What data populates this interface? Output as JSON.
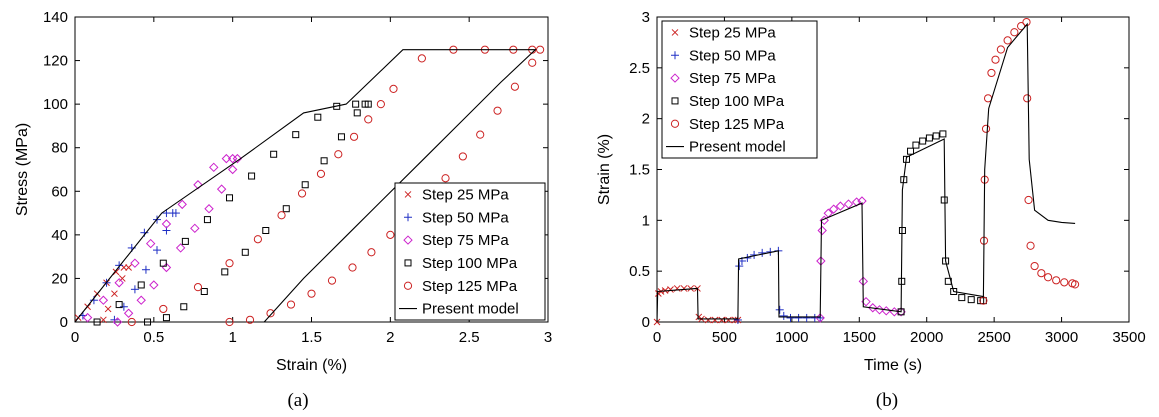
{
  "chart_data": [
    {
      "type": "scatter",
      "panel_label": "(a)",
      "xlabel": "Strain (%)",
      "ylabel": "Stress (MPa)",
      "xlim": [
        0,
        3
      ],
      "ylim": [
        0,
        140
      ],
      "xticks": [
        "0",
        "0.5",
        "1",
        "1.5",
        "2",
        "2.5",
        "3"
      ],
      "yticks": [
        "0",
        "20",
        "40",
        "60",
        "80",
        "100",
        "120",
        "140"
      ],
      "legend_position": "bottom-right",
      "grid": false,
      "series": [
        {
          "name": "Step 25 MPa",
          "marker": "x",
          "color": "#cc2222",
          "x": [
            0.02,
            0.08,
            0.14,
            0.2,
            0.26,
            0.31,
            0.34,
            0.3,
            0.25,
            0.21,
            0.18
          ],
          "y": [
            2,
            7,
            13,
            18,
            23,
            25,
            25,
            20,
            13,
            6,
            1
          ]
        },
        {
          "name": "Step 50 MPa",
          "marker": "+",
          "color": "#1f2fc4",
          "x": [
            0.05,
            0.12,
            0.2,
            0.28,
            0.36,
            0.44,
            0.52,
            0.58,
            0.62,
            0.64,
            0.58,
            0.52,
            0.45,
            0.38,
            0.31,
            0.25
          ],
          "y": [
            3,
            10,
            18,
            26,
            34,
            41,
            47,
            50,
            50,
            50,
            42,
            33,
            24,
            15,
            7,
            1
          ]
        },
        {
          "name": "Step 75 MPa",
          "marker": "diamond",
          "color": "#cc22cc",
          "x": [
            0.08,
            0.18,
            0.28,
            0.38,
            0.48,
            0.58,
            0.68,
            0.78,
            0.88,
            0.96,
            1.0,
            1.03,
            1.0,
            0.93,
            0.85,
            0.76,
            0.67,
            0.58,
            0.5,
            0.42,
            0.34,
            0.27
          ],
          "y": [
            2,
            10,
            18,
            27,
            36,
            45,
            54,
            63,
            71,
            75,
            75,
            75,
            70,
            61,
            52,
            43,
            34,
            25,
            17,
            10,
            4,
            0
          ]
        },
        {
          "name": "Step 100 MPa",
          "marker": "square",
          "color": "#000000",
          "x": [
            0.14,
            0.28,
            0.42,
            0.56,
            0.7,
            0.84,
            0.98,
            1.12,
            1.26,
            1.4,
            1.54,
            1.66,
            1.78,
            1.86,
            1.84,
            1.79,
            1.69,
            1.58,
            1.46,
            1.34,
            1.21,
            1.08,
            0.95,
            0.82,
            0.69,
            0.58,
            0.46
          ],
          "y": [
            0,
            8,
            17,
            27,
            37,
            47,
            57,
            67,
            77,
            86,
            94,
            99,
            100,
            100,
            100,
            96,
            85,
            74,
            63,
            52,
            42,
            32,
            23,
            14,
            7,
            2,
            0
          ]
        },
        {
          "name": "Step 125 MPa",
          "marker": "circle",
          "color": "#cc2222",
          "x": [
            0.36,
            0.56,
            0.78,
            0.98,
            1.16,
            1.31,
            1.44,
            1.56,
            1.67,
            1.77,
            1.86,
            1.94,
            2.02,
            2.2,
            2.4,
            2.6,
            2.78,
            2.9,
            2.95,
            2.9,
            2.79,
            2.68,
            2.57,
            2.46,
            2.35,
            2.24,
            2.12,
            2.0,
            1.88,
            1.76,
            1.63,
            1.5,
            1.37,
            1.24,
            1.11,
            0.98
          ],
          "y": [
            0,
            6,
            16,
            27,
            38,
            49,
            59,
            68,
            77,
            85,
            93,
            100,
            107,
            121,
            125,
            125,
            125,
            125,
            125,
            119,
            108,
            97,
            86,
            76,
            66,
            56,
            48,
            40,
            32,
            25,
            19,
            13,
            8,
            4,
            1,
            0
          ]
        },
        {
          "name": "Present model",
          "line": true,
          "color": "#000000",
          "x": [
            0,
            0.55,
            1.05,
            1.45,
            1.72,
            2.08,
            2.5,
            2.92,
            2.7,
            2.45,
            2.2,
            1.95,
            1.7,
            1.45,
            1.2
          ],
          "y": [
            0,
            50,
            75,
            96,
            100,
            125,
            125,
            125,
            110,
            92,
            74,
            56,
            38,
            20,
            0
          ]
        }
      ]
    },
    {
      "type": "scatter",
      "panel_label": "(b)",
      "xlabel": "Time (s)",
      "ylabel": "Strain (%)",
      "xlim": [
        0,
        3500
      ],
      "ylim": [
        0,
        3
      ],
      "xticks": [
        "0",
        "500",
        "1000",
        "1500",
        "2000",
        "2500",
        "3000",
        "3500"
      ],
      "yticks": [
        "0",
        "0.5",
        "1",
        "1.5",
        "2",
        "2.5",
        "3"
      ],
      "legend_position": "top-left",
      "grid": false,
      "series": [
        {
          "name": "Step 25 MPa",
          "marker": "x",
          "color": "#cc2222",
          "x": [
            0,
            10,
            30,
            60,
            100,
            150,
            200,
            250,
            300,
            310,
            330,
            380,
            430,
            480,
            530,
            580,
            600
          ],
          "y": [
            0,
            0.28,
            0.3,
            0.31,
            0.32,
            0.33,
            0.33,
            0.33,
            0.33,
            0.05,
            0.03,
            0.02,
            0.02,
            0.02,
            0.02,
            0.02,
            0.02
          ]
        },
        {
          "name": "Step 50 MPa",
          "marker": "+",
          "color": "#1f2fc4",
          "x": [
            600,
            610,
            630,
            670,
            720,
            780,
            840,
            900,
            910,
            940,
            990,
            1050,
            1110,
            1170,
            1210
          ],
          "y": [
            0.02,
            0.55,
            0.6,
            0.63,
            0.66,
            0.68,
            0.69,
            0.7,
            0.12,
            0.06,
            0.04,
            0.04,
            0.04,
            0.04,
            0.04
          ]
        },
        {
          "name": "Step 75 MPa",
          "marker": "diamond",
          "color": "#cc22cc",
          "x": [
            1210,
            1215,
            1225,
            1240,
            1270,
            1310,
            1360,
            1420,
            1480,
            1520,
            1530,
            1550,
            1600,
            1650,
            1700,
            1760,
            1810
          ],
          "y": [
            0.04,
            0.6,
            0.9,
            1.0,
            1.07,
            1.11,
            1.14,
            1.16,
            1.18,
            1.19,
            0.4,
            0.2,
            0.14,
            0.12,
            0.11,
            0.1,
            0.1
          ]
        },
        {
          "name": "Step 100 MPa",
          "marker": "square",
          "color": "#000000",
          "x": [
            1810,
            1815,
            1820,
            1830,
            1850,
            1880,
            1920,
            1970,
            2020,
            2070,
            2120,
            2130,
            2140,
            2160,
            2200,
            2260,
            2330,
            2400,
            2420
          ],
          "y": [
            0.1,
            0.4,
            0.9,
            1.4,
            1.6,
            1.68,
            1.74,
            1.78,
            1.81,
            1.83,
            1.85,
            1.2,
            0.6,
            0.4,
            0.3,
            0.24,
            0.22,
            0.21,
            0.21
          ]
        },
        {
          "name": "Step 125 MPa",
          "marker": "circle",
          "color": "#cc2222",
          "x": [
            2420,
            2425,
            2430,
            2440,
            2455,
            2480,
            2510,
            2550,
            2600,
            2650,
            2700,
            2740,
            2745,
            2755,
            2770,
            2800,
            2850,
            2900,
            2960,
            3020,
            3080,
            3100
          ],
          "y": [
            0.21,
            0.8,
            1.4,
            1.9,
            2.2,
            2.45,
            2.58,
            2.68,
            2.77,
            2.85,
            2.91,
            2.95,
            2.2,
            1.2,
            0.75,
            0.55,
            0.48,
            0.44,
            0.41,
            0.39,
            0.38,
            0.37
          ]
        },
        {
          "name": "Present model",
          "line": true,
          "color": "#000000",
          "x": [
            0,
            5,
            300,
            305,
            600,
            605,
            900,
            905,
            1210,
            1220,
            1520,
            1530,
            1810,
            1820,
            1850,
            2130,
            2140,
            2200,
            2420,
            2430,
            2460,
            2600,
            2745,
            2760,
            2800,
            2900,
            3000,
            3100
          ],
          "y": [
            0,
            0.3,
            0.33,
            0.03,
            0.03,
            0.62,
            0.7,
            0.05,
            0.05,
            1.0,
            1.17,
            0.15,
            0.1,
            1.3,
            1.62,
            1.8,
            0.6,
            0.3,
            0.25,
            1.5,
            2.1,
            2.7,
            2.93,
            1.6,
            1.1,
            1.0,
            0.98,
            0.97
          ]
        }
      ]
    }
  ]
}
